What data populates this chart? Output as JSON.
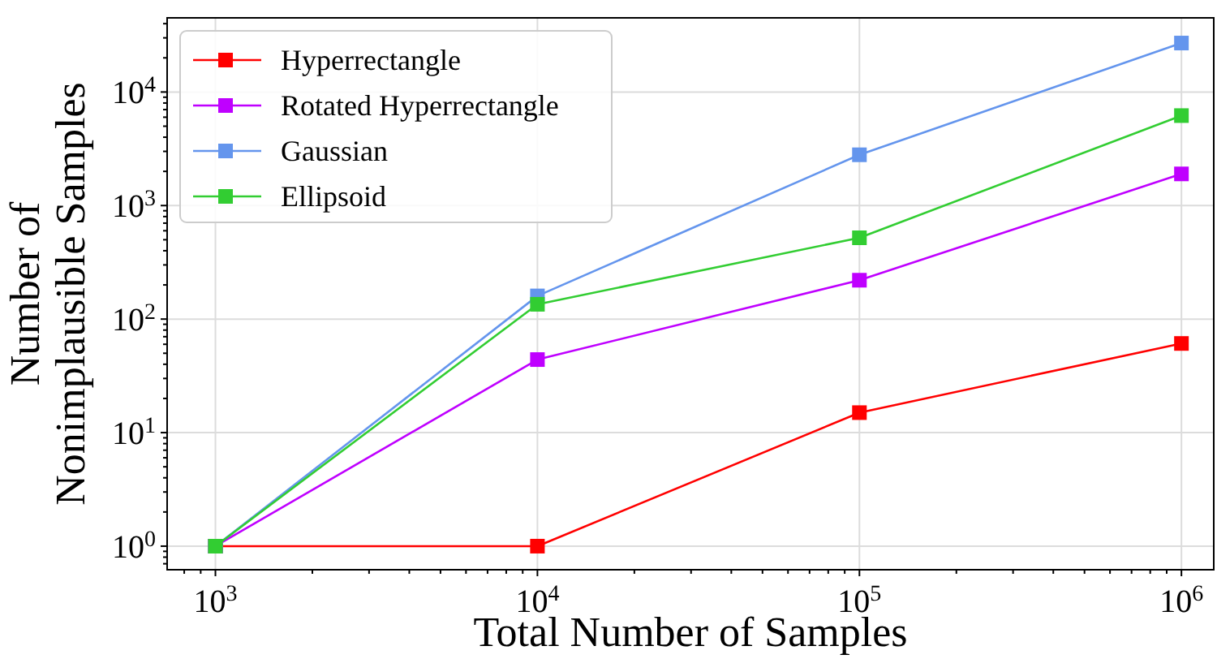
{
  "chart_data": {
    "type": "line",
    "xlabel": "Total Number of Samples",
    "ylabel": "Number of\nNonimplausible Samples",
    "log": "xy",
    "grid": true,
    "legend": "top left",
    "marker": "square",
    "line_style": "solid",
    "x": [
      1000,
      10000,
      100000,
      1000000
    ],
    "xlim": [
      708,
      1260000
    ],
    "ylim": [
      0.62,
      45000
    ],
    "xticks": [
      {
        "value": 800,
        "label": null
      },
      {
        "value": 900,
        "label": null
      },
      {
        "value": 1000,
        "label": "10$^{3}$"
      },
      {
        "value": 2000,
        "label": null
      },
      {
        "value": 3000,
        "label": null
      },
      {
        "value": 4000,
        "label": null
      },
      {
        "value": 5000,
        "label": null
      },
      {
        "value": 6000,
        "label": null
      },
      {
        "value": 7000,
        "label": null
      },
      {
        "value": 8000,
        "label": null
      },
      {
        "value": 9000,
        "label": null
      },
      {
        "value": 10000,
        "label": "10$^{4}$"
      },
      {
        "value": 20000,
        "label": null
      },
      {
        "value": 30000,
        "label": null
      },
      {
        "value": 40000,
        "label": null
      },
      {
        "value": 50000,
        "label": null
      },
      {
        "value": 60000,
        "label": null
      },
      {
        "value": 70000,
        "label": null
      },
      {
        "value": 80000,
        "label": null
      },
      {
        "value": 90000,
        "label": null
      },
      {
        "value": 100000,
        "label": "10$^{5}$"
      },
      {
        "value": 200000,
        "label": null
      },
      {
        "value": 300000,
        "label": null
      },
      {
        "value": 400000,
        "label": null
      },
      {
        "value": 500000,
        "label": null
      },
      {
        "value": 600000,
        "label": null
      },
      {
        "value": 700000,
        "label": null
      },
      {
        "value": 800000,
        "label": null
      },
      {
        "value": 900000,
        "label": null
      },
      {
        "value": 1000000,
        "label": "10$^{6}$"
      }
    ],
    "yticks": [
      {
        "value": 0.7,
        "label": null
      },
      {
        "value": 0.8,
        "label": null
      },
      {
        "value": 0.9,
        "label": null
      },
      {
        "value": 1,
        "label": "10$^{0}$"
      },
      {
        "value": 2,
        "label": null
      },
      {
        "value": 3,
        "label": null
      },
      {
        "value": 4,
        "label": null
      },
      {
        "value": 5,
        "label": null
      },
      {
        "value": 6,
        "label": null
      },
      {
        "value": 7,
        "label": null
      },
      {
        "value": 8,
        "label": null
      },
      {
        "value": 9,
        "label": null
      },
      {
        "value": 10,
        "label": "10$^{1}$"
      },
      {
        "value": 20,
        "label": null
      },
      {
        "value": 30,
        "label": null
      },
      {
        "value": 40,
        "label": null
      },
      {
        "value": 50,
        "label": null
      },
      {
        "value": 60,
        "label": null
      },
      {
        "value": 70,
        "label": null
      },
      {
        "value": 80,
        "label": null
      },
      {
        "value": 90,
        "label": null
      },
      {
        "value": 100,
        "label": "10$^{2}$"
      },
      {
        "value": 200,
        "label": null
      },
      {
        "value": 300,
        "label": null
      },
      {
        "value": 400,
        "label": null
      },
      {
        "value": 500,
        "label": null
      },
      {
        "value": 600,
        "label": null
      },
      {
        "value": 700,
        "label": null
      },
      {
        "value": 800,
        "label": null
      },
      {
        "value": 900,
        "label": null
      },
      {
        "value": 1000,
        "label": "10$^{3}$"
      },
      {
        "value": 2000,
        "label": null
      },
      {
        "value": 3000,
        "label": null
      },
      {
        "value": 4000,
        "label": null
      },
      {
        "value": 5000,
        "label": null
      },
      {
        "value": 6000,
        "label": null
      },
      {
        "value": 7000,
        "label": null
      },
      {
        "value": 8000,
        "label": null
      },
      {
        "value": 9000,
        "label": null
      },
      {
        "value": 10000,
        "label": "10$^{4}$"
      },
      {
        "value": 20000,
        "label": null
      },
      {
        "value": 30000,
        "label": null
      },
      {
        "value": 40000,
        "label": null
      }
    ],
    "series": [
      {
        "name": "Hyperrectangle",
        "color": "#ff0000",
        "values": [
          1,
          1,
          15,
          61
        ]
      },
      {
        "name": "Rotated Hyperrectangle",
        "color": "#bf00ff",
        "values": [
          1,
          44,
          220,
          1900
        ]
      },
      {
        "name": "Gaussian",
        "color": "#6495ed",
        "values": [
          1,
          160,
          2800,
          27000
        ]
      },
      {
        "name": "Ellipsoid",
        "color": "#32cd32",
        "values": [
          1,
          135,
          520,
          6200
        ]
      }
    ]
  }
}
